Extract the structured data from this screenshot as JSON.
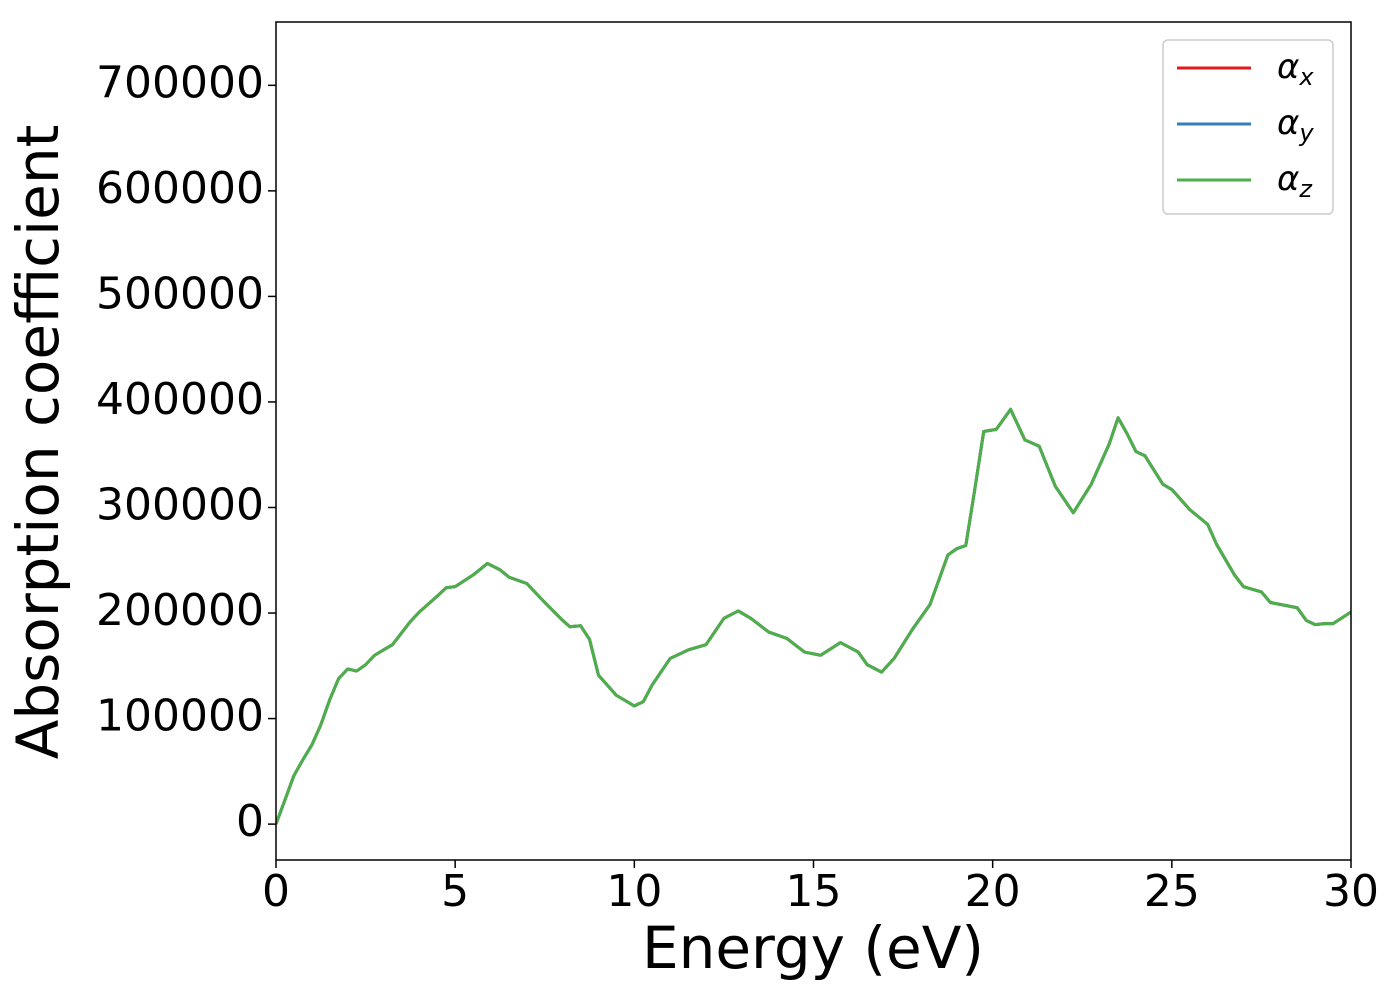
{
  "chart_data": {
    "type": "line",
    "x_label": "Energy (eV)",
    "y_label": "Absorption coefficient",
    "x": [
      0,
      0.25,
      0.5,
      0.75,
      1.0,
      1.25,
      1.5,
      1.75,
      2.0,
      2.25,
      2.5,
      2.75,
      3.0,
      3.25,
      3.5,
      3.75,
      4.0,
      4.5,
      4.75,
      5.0,
      5.5,
      5.9,
      6.25,
      6.5,
      7.0,
      7.5,
      8.0,
      8.2,
      8.5,
      8.75,
      9.0,
      9.5,
      10.0,
      10.25,
      10.5,
      11.0,
      11.5,
      12.0,
      12.5,
      12.9,
      13.25,
      13.75,
      14.25,
      14.75,
      15.2,
      15.75,
      16.25,
      16.5,
      16.9,
      17.25,
      17.75,
      18.25,
      18.75,
      19.0,
      19.25,
      19.5,
      19.75,
      20.1,
      20.5,
      20.9,
      21.3,
      21.75,
      22.25,
      22.75,
      23.25,
      23.5,
      23.75,
      24.0,
      24.25,
      24.75,
      25.0,
      25.5,
      26.0,
      26.25,
      26.75,
      27.0,
      27.5,
      27.75,
      28.5,
      28.75,
      29.0,
      29.25,
      29.5,
      30.0
    ],
    "series": [
      {
        "name": "αx",
        "color": "#e41a1c",
        "values": [
          0,
          23000,
          46000,
          61000,
          75000,
          94000,
          118000,
          138000,
          147000,
          145000,
          151000,
          160000,
          165000,
          170000,
          181000,
          192000,
          201000,
          216000,
          224000,
          225000,
          236000,
          247000,
          241000,
          234000,
          228000,
          210000,
          193000,
          187000,
          188000,
          175000,
          141000,
          122000,
          112000,
          116000,
          132000,
          157000,
          165000,
          170000,
          195000,
          202000,
          195000,
          182000,
          176000,
          163000,
          160000,
          172000,
          163000,
          151000,
          144000,
          157000,
          184000,
          208000,
          255000,
          261000,
          264000,
          317000,
          372000,
          374000,
          393000,
          364000,
          358000,
          320000,
          295000,
          322000,
          360000,
          385000,
          370000,
          353000,
          349000,
          322000,
          317000,
          298000,
          284000,
          265000,
          236000,
          225000,
          220000,
          210000,
          205000,
          193000,
          189000,
          190000,
          190000,
          201000
        ]
      },
      {
        "name": "αy",
        "color": "#377eb8",
        "values": [
          0,
          23000,
          46000,
          61000,
          75000,
          94000,
          118000,
          138000,
          147000,
          145000,
          151000,
          160000,
          165000,
          170000,
          181000,
          192000,
          201000,
          216000,
          224000,
          225000,
          236000,
          247000,
          241000,
          234000,
          228000,
          210000,
          193000,
          187000,
          188000,
          175000,
          141000,
          122000,
          112000,
          116000,
          132000,
          157000,
          165000,
          170000,
          195000,
          202000,
          195000,
          182000,
          176000,
          163000,
          160000,
          172000,
          163000,
          151000,
          144000,
          157000,
          184000,
          208000,
          255000,
          261000,
          264000,
          317000,
          372000,
          374000,
          393000,
          364000,
          358000,
          320000,
          295000,
          322000,
          360000,
          385000,
          370000,
          353000,
          349000,
          322000,
          317000,
          298000,
          284000,
          265000,
          236000,
          225000,
          220000,
          210000,
          205000,
          193000,
          189000,
          190000,
          190000,
          201000
        ]
      },
      {
        "name": "αz",
        "color": "#4daf4a",
        "values": [
          0,
          23000,
          46000,
          61000,
          75000,
          94000,
          118000,
          138000,
          147000,
          145000,
          151000,
          160000,
          165000,
          170000,
          181000,
          192000,
          201000,
          216000,
          224000,
          225000,
          236000,
          247000,
          241000,
          234000,
          228000,
          210000,
          193000,
          187000,
          188000,
          175000,
          141000,
          122000,
          112000,
          116000,
          132000,
          157000,
          165000,
          170000,
          195000,
          202000,
          195000,
          182000,
          176000,
          163000,
          160000,
          172000,
          163000,
          151000,
          144000,
          157000,
          184000,
          208000,
          255000,
          261000,
          264000,
          317000,
          372000,
          374000,
          393000,
          364000,
          358000,
          320000,
          295000,
          322000,
          360000,
          385000,
          370000,
          353000,
          349000,
          322000,
          317000,
          298000,
          284000,
          265000,
          236000,
          225000,
          220000,
          210000,
          205000,
          193000,
          189000,
          190000,
          190000,
          201000
        ]
      }
    ],
    "xlim": [
      0,
      30
    ],
    "xticks": [
      0,
      5,
      10,
      15,
      20,
      25,
      30
    ],
    "ylim": [
      -34000,
      760000
    ],
    "yticks": [
      0,
      100000,
      200000,
      300000,
      400000,
      500000,
      600000,
      700000
    ],
    "grid": false,
    "legend": "upper right"
  }
}
